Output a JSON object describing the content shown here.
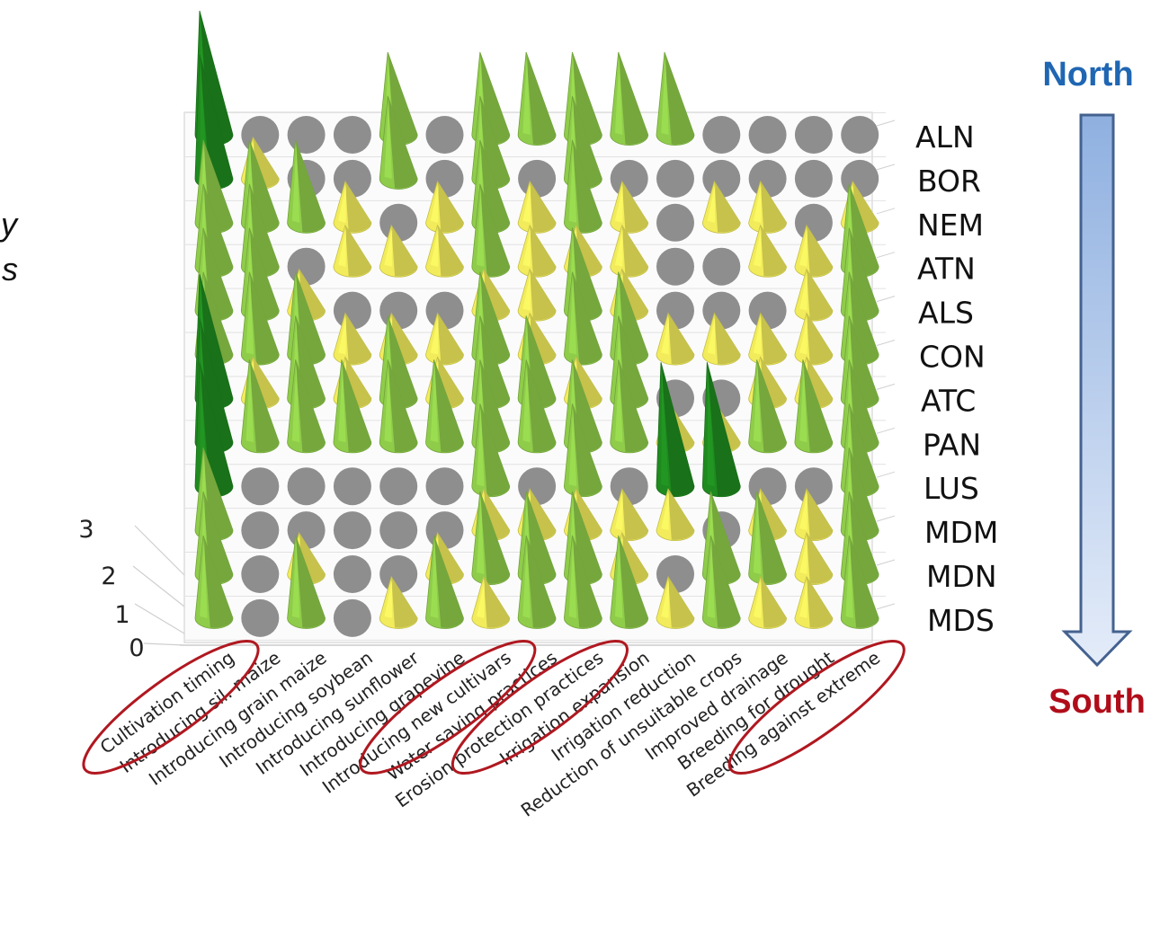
{
  "chart_data": {
    "type": "3d-bar",
    "title": "",
    "measures": [
      "Cultivation timing",
      "Introducing sil. maize",
      "Introducing grain maize",
      "Introducing soybean",
      "Introducing sunflower",
      "Introducing grapevine",
      "Introducing new cultivars",
      "Water saving practices",
      "Erosion protection practices",
      "Irrigation expansion",
      "Irrigation reduction",
      "Reduction of unsuitable crops",
      "Improved drainage",
      "Breeding for drought",
      "Breeding against extreme"
    ],
    "regions": [
      "ALN",
      "BOR",
      "NEM",
      "ATN",
      "ALS",
      "CON",
      "ATC",
      "PAN",
      "LUS",
      "MDM",
      "MDN",
      "MDS"
    ],
    "z_axis": {
      "ticks": [
        "0",
        "1",
        "2",
        "3"
      ],
      "range": [
        0,
        3
      ]
    },
    "values": [
      [
        3,
        0,
        0,
        0,
        2,
        0,
        2,
        2,
        2,
        2,
        2,
        0,
        0,
        0,
        0
      ],
      [
        3,
        1,
        0,
        0,
        2,
        0,
        2,
        0,
        2,
        0,
        0,
        0,
        0,
        0,
        0
      ],
      [
        2,
        2,
        2,
        1,
        0,
        1,
        2,
        1,
        2,
        1,
        0,
        1,
        1,
        0,
        1
      ],
      [
        2,
        2,
        0,
        1,
        1,
        1,
        2,
        1,
        1,
        1,
        0,
        0,
        1,
        1,
        2
      ],
      [
        2,
        2,
        1,
        0,
        0,
        0,
        1,
        1,
        2,
        1,
        0,
        0,
        0,
        1,
        2
      ],
      [
        2,
        2,
        2,
        1,
        1,
        1,
        2,
        1,
        2,
        2,
        1,
        1,
        1,
        1,
        2
      ],
      [
        3,
        1,
        2,
        1,
        2,
        1,
        2,
        2,
        1,
        2,
        0,
        0,
        1,
        1,
        2
      ],
      [
        3,
        2,
        2,
        2,
        2,
        2,
        2,
        2,
        2,
        2,
        1,
        1,
        2,
        2,
        2
      ],
      [
        3,
        0,
        0,
        0,
        0,
        0,
        2,
        0,
        2,
        0,
        3,
        3,
        0,
        0,
        2
      ],
      [
        2,
        0,
        0,
        0,
        0,
        0,
        1,
        1,
        1,
        1,
        1,
        0,
        1,
        1,
        2
      ],
      [
        2,
        0,
        1,
        0,
        0,
        1,
        2,
        2,
        2,
        1,
        0,
        2,
        2,
        1,
        2
      ],
      [
        2,
        0,
        2,
        0,
        1,
        2,
        1,
        2,
        2,
        2,
        1,
        2,
        1,
        1,
        2
      ]
    ],
    "value_colors": {
      "0": "#8e8e8e",
      "1": "#f2ec5c",
      "2": "#8fcc4a",
      "3": "#1f8a1f"
    },
    "highlighted_measures": [
      "Cultivation timing",
      "Introducing new cultivars",
      "Erosion protection practices",
      "Breeding against extreme"
    ],
    "highlight_color": "#b01820"
  },
  "zone_indicator": {
    "north_label": "North",
    "south_label": "South",
    "north_color": "#1f66b3",
    "south_color": "#b00d1a",
    "arrow_top_color": "#8fb0e0",
    "arrow_bottom_color": "#e4ecf9",
    "arrow_outline": "#44628f"
  },
  "cropped_text": "y\ns"
}
